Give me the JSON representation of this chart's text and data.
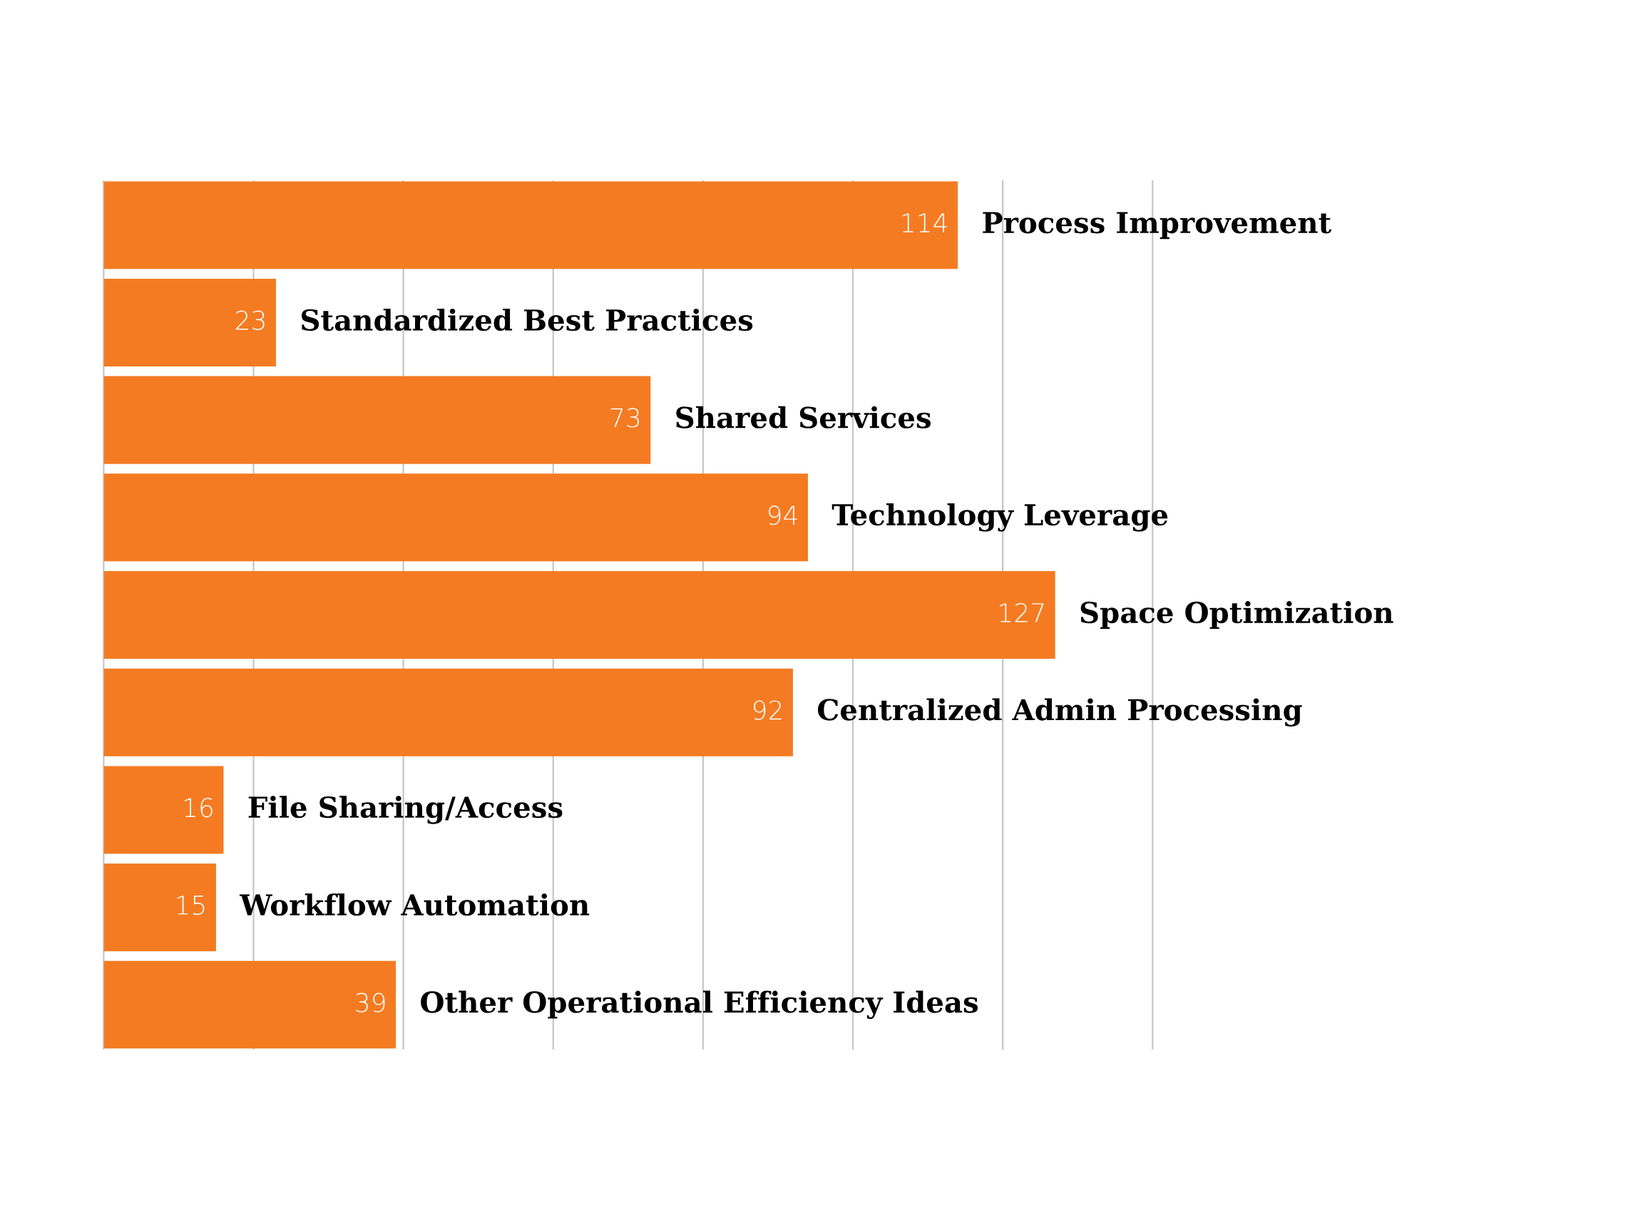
{
  "chart_data": {
    "type": "bar",
    "orientation": "horizontal",
    "categories": [
      "Process Improvement",
      "Standardized Best Practices",
      "Shared Services",
      "Technology Leverage",
      "Space Optimization",
      "Centralized Admin Processing",
      "File Sharing/Access",
      "Workflow Automation",
      "Other Operational Efficiency Ideas"
    ],
    "values": [
      114,
      23,
      73,
      94,
      127,
      92,
      16,
      15,
      39
    ],
    "color": "#f47b22",
    "xlim": [
      0,
      140
    ],
    "xticks": [
      {
        "value": 0,
        "label": null
      },
      {
        "value": 20,
        "label": null
      },
      {
        "value": 40,
        "label": null
      },
      {
        "value": 60,
        "label": null
      },
      {
        "value": 80,
        "label": null
      },
      {
        "value": 100,
        "label": null
      },
      {
        "value": 120,
        "label": null
      },
      {
        "value": 140,
        "label": null
      }
    ],
    "grid": "x",
    "data_labels": true
  }
}
